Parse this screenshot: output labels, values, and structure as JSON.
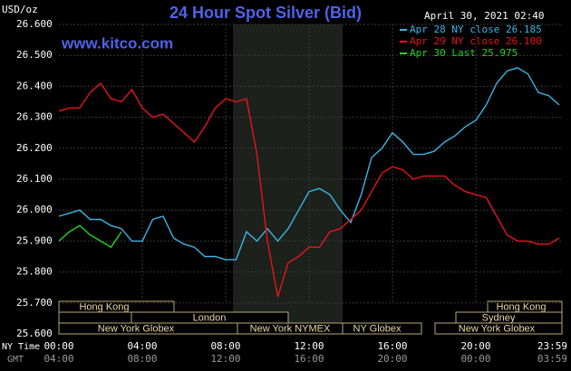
{
  "chart_data": {
    "type": "line",
    "title": "24 Hour Spot Silver (Bid)",
    "site": "www.kitco.com",
    "unit": "USD/oz",
    "timestamp": "April 30, 2021 02:40",
    "x_axis_top_label": "NY Time",
    "x_axis_bottom_label": "GMT",
    "x": [
      0,
      0.5,
      1,
      1.5,
      2,
      2.5,
      3,
      3.5,
      4,
      4.5,
      5,
      5.5,
      6,
      6.5,
      7,
      7.5,
      8,
      8.5,
      9,
      9.5,
      10,
      10.5,
      11,
      11.5,
      12,
      12.5,
      13,
      13.5,
      14,
      14.5,
      15,
      15.5,
      16,
      16.5,
      17,
      17.5,
      18,
      18.5,
      19,
      19.5,
      20,
      20.5,
      21,
      21.5,
      22,
      22.5,
      23,
      23.5,
      24
    ],
    "xlim": [
      0,
      24
    ],
    "xticks": [
      {
        "value": 0,
        "label": "00:00"
      },
      {
        "value": 4,
        "label": "04:00"
      },
      {
        "value": 8,
        "label": "08:00"
      },
      {
        "value": 12,
        "label": "12:00"
      },
      {
        "value": 16,
        "label": "16:00"
      },
      {
        "value": 20,
        "label": "20:00"
      },
      {
        "value": 24,
        "label": "23:59"
      }
    ],
    "gmt_labels": [
      "04:00",
      "08:00",
      "12:00",
      "16:00",
      "20:00",
      "00:00",
      "03:59"
    ],
    "ylim": [
      25.6,
      26.6
    ],
    "yticks": [
      {
        "value": 25.6,
        "label": "25.600"
      },
      {
        "value": 25.7,
        "label": "25.700"
      },
      {
        "value": 25.8,
        "label": "25.800"
      },
      {
        "value": 25.9,
        "label": "25.900"
      },
      {
        "value": 26.0,
        "label": "26.000"
      },
      {
        "value": 26.1,
        "label": "26.100"
      },
      {
        "value": 26.2,
        "label": "26.200"
      },
      {
        "value": 26.3,
        "label": "26.300"
      },
      {
        "value": 26.4,
        "label": "26.400"
      },
      {
        "value": 26.5,
        "label": "26.500"
      },
      {
        "value": 26.6,
        "label": "26.600"
      }
    ],
    "grid": true,
    "sessions": [
      "Hong Kong",
      "London",
      "New York Globex",
      "New York NYMEX",
      "NY Globex",
      "Hong Kong",
      "Sydney",
      "New York Globex"
    ],
    "series": [
      {
        "name": "Apr 28 NY close 26.185",
        "color": "#3cb4e6",
        "values": [
          25.98,
          25.99,
          26.0,
          25.97,
          25.97,
          25.95,
          25.94,
          25.9,
          25.9,
          25.97,
          25.98,
          25.91,
          25.89,
          25.88,
          25.85,
          25.85,
          25.84,
          25.84,
          25.93,
          25.9,
          25.94,
          25.9,
          25.94,
          26.0,
          26.06,
          26.07,
          26.05,
          26.0,
          25.96,
          26.05,
          26.17,
          26.2,
          26.25,
          26.22,
          26.18,
          26.18,
          26.19,
          26.22,
          26.24,
          26.27,
          26.29,
          26.34,
          26.41,
          26.45,
          26.46,
          26.44,
          26.38,
          26.37,
          26.34
        ]
      },
      {
        "name": "Apr 29 NY close 26.100",
        "color": "#e8141c",
        "values": [
          26.32,
          26.33,
          26.33,
          26.38,
          26.41,
          26.36,
          26.35,
          26.39,
          26.33,
          26.3,
          26.31,
          26.28,
          26.25,
          26.22,
          26.27,
          26.33,
          26.36,
          26.35,
          26.36,
          26.18,
          25.9,
          25.72,
          25.83,
          25.85,
          25.88,
          25.88,
          25.93,
          25.94,
          25.97,
          26.0,
          26.06,
          26.12,
          26.14,
          26.13,
          26.1,
          26.11,
          26.11,
          26.11,
          26.08,
          26.06,
          26.05,
          26.04,
          25.98,
          25.92,
          25.9,
          25.9,
          25.89,
          25.89,
          25.91
        ]
      },
      {
        "name": "Apr 30 Last 25.975",
        "color": "#22d622",
        "values": [
          25.9,
          25.93,
          25.95,
          25.92,
          25.9,
          25.88,
          25.93,
          null,
          null,
          null,
          null,
          null,
          null,
          null,
          null,
          null,
          null,
          null,
          null,
          null,
          null,
          null,
          null,
          null,
          null,
          null,
          null,
          null,
          null,
          null,
          null,
          null,
          null,
          null,
          null,
          null,
          null,
          null,
          null,
          null,
          null,
          null,
          null,
          null,
          null,
          null,
          null,
          null,
          null
        ]
      }
    ]
  }
}
